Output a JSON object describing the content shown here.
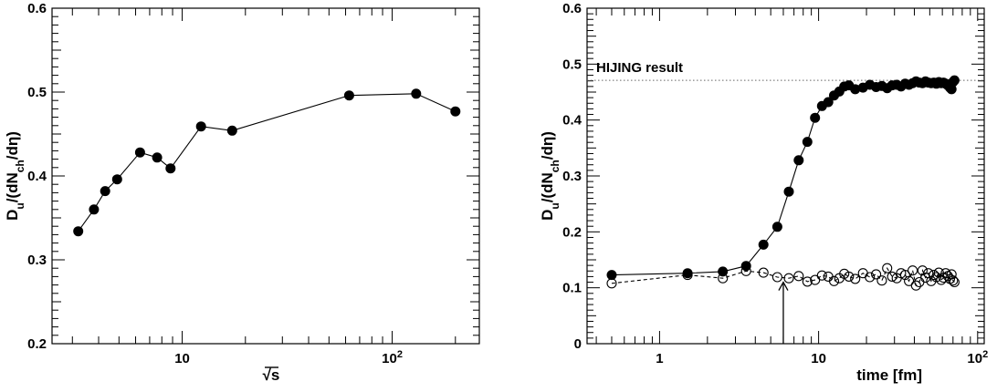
{
  "chart_data": [
    {
      "type": "line",
      "xlabel": "√s",
      "ylabel": "D_u/(dN_ch/dη)",
      "x_scale": "log",
      "xlim": [
        2.4,
        260
      ],
      "ylim": [
        0.2,
        0.6
      ],
      "y_ticks": [
        "0.2",
        "0.3",
        "0.4",
        "0.5",
        "0.6"
      ],
      "x_ticks": [
        {
          "value": 10,
          "base": "10",
          "exp": ""
        },
        {
          "value": 100,
          "base": "10",
          "exp": "2"
        }
      ],
      "grid": false,
      "series": [
        {
          "marker": "filled-circle",
          "line": "solid",
          "points": [
            [
              3.2,
              0.334
            ],
            [
              3.8,
              0.36
            ],
            [
              4.3,
              0.382
            ],
            [
              4.9,
              0.396
            ],
            [
              6.3,
              0.428
            ],
            [
              7.6,
              0.422
            ],
            [
              8.8,
              0.409
            ],
            [
              12.3,
              0.459
            ],
            [
              17.3,
              0.454
            ],
            [
              62.4,
              0.496
            ],
            [
              130,
              0.498
            ],
            [
              200,
              0.477
            ]
          ]
        }
      ]
    },
    {
      "type": "line",
      "xlabel": "time [fm]",
      "ylabel": "D_u/(dN_ch/dη)",
      "x_scale": "log",
      "xlim": [
        0.35,
        110
      ],
      "ylim": [
        0,
        0.6
      ],
      "y_ticks": [
        "0",
        "0.1",
        "0.2",
        "0.3",
        "0.4",
        "0.5",
        "0.6"
      ],
      "x_ticks": [
        {
          "value": 1,
          "base": "1",
          "exp": ""
        },
        {
          "value": 10,
          "base": "10",
          "exp": ""
        },
        {
          "value": 100,
          "base": "10",
          "exp": "2"
        }
      ],
      "grid": false,
      "reference_line": {
        "y": 0.471,
        "label": "HIJING result",
        "style": "dotted"
      },
      "arrow": {
        "x": 6,
        "y_from": 0.0,
        "y_to": 0.11
      },
      "series": [
        {
          "marker": "filled-circle",
          "line": "solid",
          "points": [
            [
              0.5,
              0.123
            ],
            [
              1.5,
              0.126
            ],
            [
              2.5,
              0.129
            ],
            [
              3.5,
              0.139
            ],
            [
              4.5,
              0.177
            ],
            [
              5.5,
              0.209
            ],
            [
              6.5,
              0.272
            ],
            [
              7.5,
              0.328
            ],
            [
              8.5,
              0.361
            ],
            [
              9.5,
              0.404
            ],
            [
              10.5,
              0.425
            ],
            [
              11.5,
              0.432
            ],
            [
              12.5,
              0.444
            ],
            [
              13.5,
              0.451
            ],
            [
              14.5,
              0.46
            ],
            [
              15.5,
              0.462
            ],
            [
              17,
              0.455
            ],
            [
              19,
              0.458
            ],
            [
              21,
              0.463
            ],
            [
              23,
              0.459
            ],
            [
              25,
              0.461
            ],
            [
              27,
              0.457
            ],
            [
              29,
              0.462
            ],
            [
              31,
              0.463
            ],
            [
              33,
              0.46
            ],
            [
              35,
              0.465
            ],
            [
              37,
              0.463
            ],
            [
              39,
              0.466
            ],
            [
              41,
              0.469
            ],
            [
              43,
              0.467
            ],
            [
              45,
              0.466
            ],
            [
              47,
              0.469
            ],
            [
              49,
              0.467
            ],
            [
              51,
              0.466
            ],
            [
              53,
              0.467
            ],
            [
              55,
              0.465
            ],
            [
              57,
              0.468
            ],
            [
              59,
              0.466
            ],
            [
              61,
              0.467
            ],
            [
              63,
              0.465
            ],
            [
              65,
              0.462
            ],
            [
              67,
              0.458
            ],
            [
              68.5,
              0.455
            ],
            [
              70,
              0.468
            ],
            [
              71.5,
              0.471
            ]
          ]
        },
        {
          "marker": "open-circle",
          "line": "dashed",
          "points": [
            [
              0.5,
              0.108
            ],
            [
              1.5,
              0.123
            ],
            [
              2.5,
              0.117
            ],
            [
              3.5,
              0.13
            ],
            [
              4.5,
              0.127
            ],
            [
              5.5,
              0.119
            ],
            [
              6.5,
              0.117
            ],
            [
              7.5,
              0.121
            ],
            [
              8.5,
              0.111
            ],
            [
              9.5,
              0.114
            ],
            [
              10.5,
              0.122
            ],
            [
              11.5,
              0.12
            ],
            [
              12.5,
              0.112
            ],
            [
              13.5,
              0.117
            ],
            [
              14.5,
              0.125
            ],
            [
              15.5,
              0.12
            ],
            [
              17,
              0.116
            ],
            [
              19,
              0.126
            ],
            [
              21,
              0.119
            ],
            [
              23,
              0.124
            ],
            [
              25,
              0.113
            ],
            [
              27,
              0.135
            ],
            [
              29,
              0.12
            ],
            [
              31,
              0.117
            ],
            [
              33,
              0.126
            ],
            [
              35,
              0.123
            ],
            [
              37,
              0.112
            ],
            [
              39,
              0.131
            ],
            [
              41,
              0.104
            ],
            [
              43,
              0.11
            ],
            [
              45,
              0.131
            ],
            [
              47,
              0.118
            ],
            [
              49,
              0.126
            ],
            [
              51,
              0.112
            ],
            [
              53,
              0.123
            ],
            [
              55,
              0.119
            ],
            [
              57,
              0.127
            ],
            [
              59,
              0.114
            ],
            [
              61,
              0.118
            ],
            [
              63,
              0.126
            ],
            [
              65,
              0.121
            ],
            [
              67,
              0.116
            ],
            [
              68.5,
              0.124
            ],
            [
              70,
              0.113
            ],
            [
              71.5,
              0.11
            ]
          ]
        }
      ]
    }
  ]
}
